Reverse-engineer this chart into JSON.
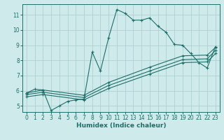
{
  "background_color": "#ceeaea",
  "grid_color": "#aed0d0",
  "line_color": "#1e6e6a",
  "xlabel": "Humidex (Indice chaleur)",
  "xlim": [
    -0.5,
    23.5
  ],
  "ylim": [
    4.6,
    11.7
  ],
  "yticks": [
    5,
    6,
    7,
    8,
    9,
    10,
    11
  ],
  "xticks": [
    0,
    1,
    2,
    3,
    4,
    5,
    6,
    7,
    8,
    9,
    10,
    11,
    12,
    13,
    14,
    15,
    16,
    17,
    18,
    19,
    20,
    21,
    22,
    23
  ],
  "s1_x": [
    0,
    1,
    2,
    3,
    4,
    5,
    6,
    7,
    8,
    9,
    10,
    11,
    12,
    13,
    14,
    15,
    16,
    17,
    18,
    19,
    20,
    21,
    22,
    23
  ],
  "s1_y": [
    5.85,
    6.1,
    6.05,
    4.7,
    5.0,
    5.3,
    5.4,
    5.45,
    8.55,
    7.3,
    9.5,
    11.35,
    11.1,
    10.65,
    10.65,
    10.8,
    10.25,
    9.85,
    9.05,
    9.0,
    8.45,
    7.85,
    7.5,
    8.9
  ],
  "s2_x": [
    0,
    2,
    7,
    10,
    15,
    19,
    22,
    23
  ],
  "s2_y": [
    5.85,
    6.05,
    5.7,
    6.55,
    7.55,
    8.3,
    8.35,
    8.85
  ],
  "s3_x": [
    0,
    2,
    7,
    10,
    15,
    19,
    22,
    23
  ],
  "s3_y": [
    5.75,
    5.9,
    5.55,
    6.35,
    7.3,
    8.05,
    8.1,
    8.65
  ],
  "s4_x": [
    0,
    2,
    7,
    10,
    15,
    19,
    22,
    23
  ],
  "s4_y": [
    5.6,
    5.75,
    5.4,
    6.15,
    7.1,
    7.85,
    7.9,
    8.45
  ]
}
